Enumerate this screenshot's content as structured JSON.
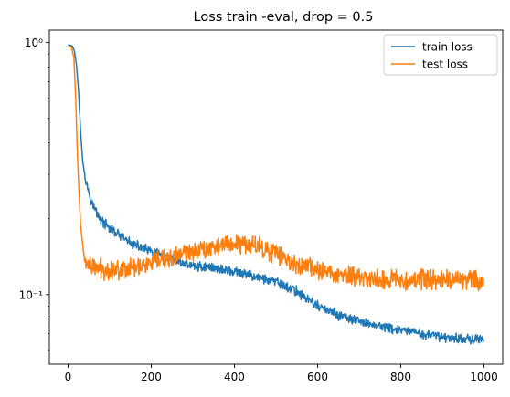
{
  "chart_data": {
    "type": "line",
    "title": "Loss train -eval, drop = 0.5",
    "xlabel": "",
    "ylabel": "",
    "xlim": [
      -45,
      1045
    ],
    "ylim": [
      0.053,
      1.12
    ],
    "yscale": "log",
    "grid": false,
    "legend_position": "top-right",
    "x_ticks": [
      0,
      200,
      400,
      600,
      800,
      1000
    ],
    "x_tick_labels": [
      "0",
      "200",
      "400",
      "600",
      "800",
      "1000"
    ],
    "y_major_ticks": [
      0.1,
      1
    ],
    "y_tick_labels": [
      "10⁻¹",
      "10⁰"
    ],
    "y_minor_ticks": [
      0.06,
      0.07,
      0.08,
      0.09,
      0.2,
      0.3,
      0.4,
      0.5,
      0.6,
      0.7,
      0.8,
      0.9
    ],
    "x_range": [
      0,
      1000
    ],
    "series": [
      {
        "name": "train loss",
        "color": "#1f77b4",
        "keypoints": [
          [
            0,
            0.98
          ],
          [
            10,
            0.97
          ],
          [
            15,
            0.93
          ],
          [
            20,
            0.82
          ],
          [
            25,
            0.65
          ],
          [
            30,
            0.45
          ],
          [
            35,
            0.34
          ],
          [
            40,
            0.3
          ],
          [
            50,
            0.255
          ],
          [
            60,
            0.225
          ],
          [
            80,
            0.197
          ],
          [
            100,
            0.183
          ],
          [
            150,
            0.16
          ],
          [
            200,
            0.148
          ],
          [
            250,
            0.138
          ],
          [
            300,
            0.13
          ],
          [
            350,
            0.128
          ],
          [
            400,
            0.123
          ],
          [
            450,
            0.118
          ],
          [
            500,
            0.112
          ],
          [
            550,
            0.103
          ],
          [
            600,
            0.09
          ],
          [
            650,
            0.083
          ],
          [
            700,
            0.078
          ],
          [
            750,
            0.075
          ],
          [
            800,
            0.072
          ],
          [
            850,
            0.07
          ],
          [
            900,
            0.068
          ],
          [
            950,
            0.067
          ],
          [
            1000,
            0.066
          ]
        ],
        "noise": 0.035
      },
      {
        "name": "test loss",
        "color": "#ff7f0e",
        "keypoints": [
          [
            0,
            0.97
          ],
          [
            8,
            0.96
          ],
          [
            14,
            0.87
          ],
          [
            18,
            0.62
          ],
          [
            22,
            0.38
          ],
          [
            26,
            0.26
          ],
          [
            30,
            0.19
          ],
          [
            34,
            0.165
          ],
          [
            40,
            0.135
          ],
          [
            60,
            0.128
          ],
          [
            100,
            0.125
          ],
          [
            150,
            0.128
          ],
          [
            200,
            0.133
          ],
          [
            250,
            0.14
          ],
          [
            300,
            0.15
          ],
          [
            350,
            0.155
          ],
          [
            400,
            0.16
          ],
          [
            450,
            0.158
          ],
          [
            500,
            0.145
          ],
          [
            550,
            0.132
          ],
          [
            600,
            0.125
          ],
          [
            650,
            0.12
          ],
          [
            700,
            0.117
          ],
          [
            750,
            0.115
          ],
          [
            800,
            0.115
          ],
          [
            850,
            0.115
          ],
          [
            900,
            0.115
          ],
          [
            950,
            0.115
          ],
          [
            1000,
            0.113
          ]
        ],
        "noise": 0.07
      }
    ]
  }
}
